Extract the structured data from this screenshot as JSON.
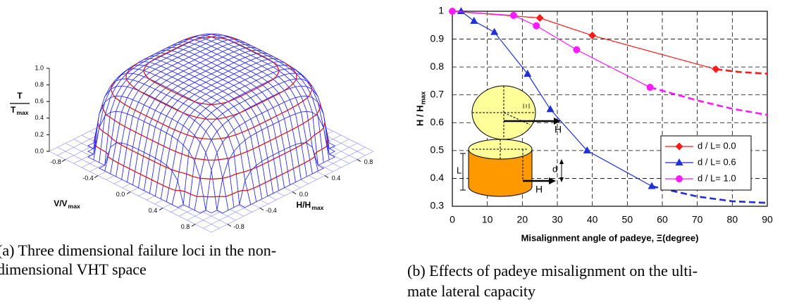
{
  "chart_data": [
    {
      "type": "surface3d",
      "zlabel": "T",
      "zlabel_denominator": "T",
      "zlabel_denominator_sub": "max",
      "xlabel": "V/V",
      "xlabel_sub": "max",
      "ylabel": "H/H",
      "ylabel_sub": "max",
      "xticks": [
        -0.8,
        -0.4,
        {
          "value": 0,
          "label": "0.0"
        },
        0.4,
        0.8
      ],
      "yticks": [
        -0.8,
        -0.4,
        {
          "value": 0,
          "label": "0.0"
        },
        0.4,
        0.8
      ],
      "zticks": [
        {
          "value": 0,
          "label": "0.0"
        },
        0.2,
        0.4,
        0.6,
        0.8,
        {
          "value": 1,
          "label": "1.0"
        }
      ],
      "xlim": [
        -1,
        1
      ],
      "ylim": [
        -1,
        1
      ],
      "zlim": [
        0,
        1
      ],
      "mesh_color": "#2a2aff",
      "contour_color": "#e01818",
      "floor_color": "#8c8cff",
      "caption": [
        "(a) Three dimensional failure loci in the non-",
        "dimensional VHT space"
      ]
    },
    {
      "type": "line",
      "xlabel": "Misalignment angle of padeye, Ξ(degree)",
      "ylabel": "H / H",
      "ylabel_sub": "max",
      "xlim": [
        0,
        90
      ],
      "ylim": [
        0.3,
        1
      ],
      "xticks": [
        0,
        10,
        20,
        30,
        40,
        50,
        60,
        70,
        80,
        90
      ],
      "yticks": [
        0.3,
        0.4,
        0.5,
        0.6,
        0.7,
        0.8,
        0.9,
        1
      ],
      "grid": true,
      "legend": "lower right",
      "series": [
        {
          "name": "d / L= 0.0",
          "color": "#ff1a1a",
          "marker": "diamond",
          "x": [
            0,
            25,
            40,
            75.3
          ],
          "values": [
            1.0,
            0.976,
            0.913,
            0.792
          ],
          "extrapolation_x": [
            75.3,
            82,
            90
          ],
          "extrapolation_values": [
            0.792,
            0.782,
            0.776
          ]
        },
        {
          "name": "d / L= 0.6",
          "color": "#1f2fd9",
          "marker": "triangle",
          "x": [
            2.5,
            6.2,
            12,
            21.5,
            28,
            38.5,
            57
          ],
          "values": [
            1.0,
            0.965,
            0.925,
            0.775,
            0.648,
            0.5,
            0.372
          ],
          "extrapolation_x": [
            57,
            70,
            80,
            90
          ],
          "extrapolation_values": [
            0.372,
            0.335,
            0.318,
            0.312
          ]
        },
        {
          "name": "d / L= 1.0",
          "color": "#ff1aff",
          "marker": "circle",
          "x": [
            0,
            17.5,
            24,
            35.5,
            56.5
          ],
          "values": [
            1.0,
            0.985,
            0.948,
            0.862,
            0.727
          ],
          "extrapolation_x": [
            56.5,
            70,
            80,
            90
          ],
          "extrapolation_values": [
            0.727,
            0.68,
            0.65,
            0.628
          ]
        }
      ],
      "annotations": [
        "Ξ",
        "H",
        "L",
        "d",
        "H"
      ],
      "caption": [
        "(b) Effects of padeye misalignment on the ulti-",
        "mate lateral capacity"
      ]
    }
  ]
}
